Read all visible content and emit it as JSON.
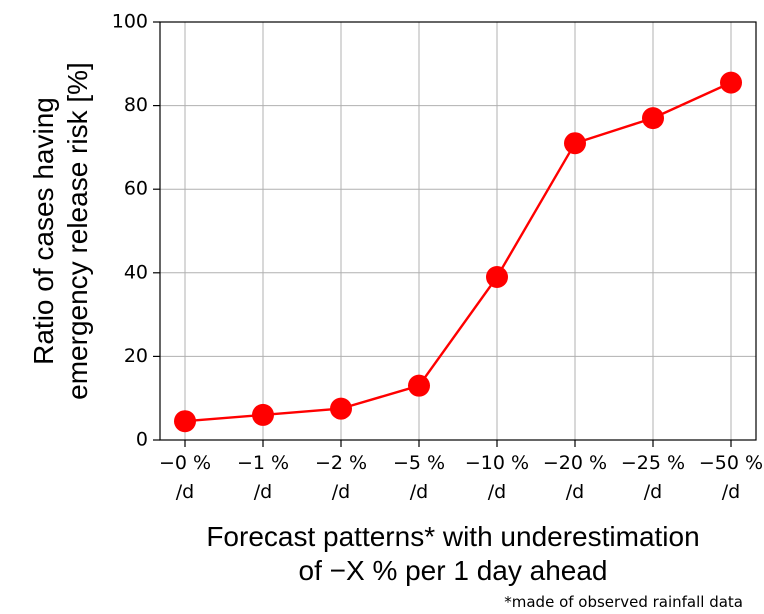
{
  "chart_data": {
    "type": "line",
    "categories": [
      [
        "−0 %",
        "/d"
      ],
      [
        "−1 %",
        "/d"
      ],
      [
        "−2 %",
        "/d"
      ],
      [
        "−5 %",
        "/d"
      ],
      [
        "−10 %",
        "/d"
      ],
      [
        "−20 %",
        "/d"
      ],
      [
        "−25 %",
        "/d"
      ],
      [
        "−50 %",
        "/d"
      ]
    ],
    "series": [
      {
        "values": [
          4.5,
          6.0,
          7.5,
          13.0,
          39.0,
          71.0,
          77.0,
          85.5
        ]
      }
    ],
    "ylabel_lines": [
      "Ratio of cases having",
      "emergency release risk [%]"
    ],
    "xlabel_lines": [
      "Forecast patterns* with underestimation",
      "of −X %  per 1 day ahead"
    ],
    "footnote": "*made of observed rainfall data",
    "ylim": [
      0,
      100
    ],
    "yticks": [
      0,
      20,
      40,
      60,
      80,
      100
    ],
    "grid": true,
    "line_color": "#ff0000",
    "marker_color": "#ff0000"
  }
}
